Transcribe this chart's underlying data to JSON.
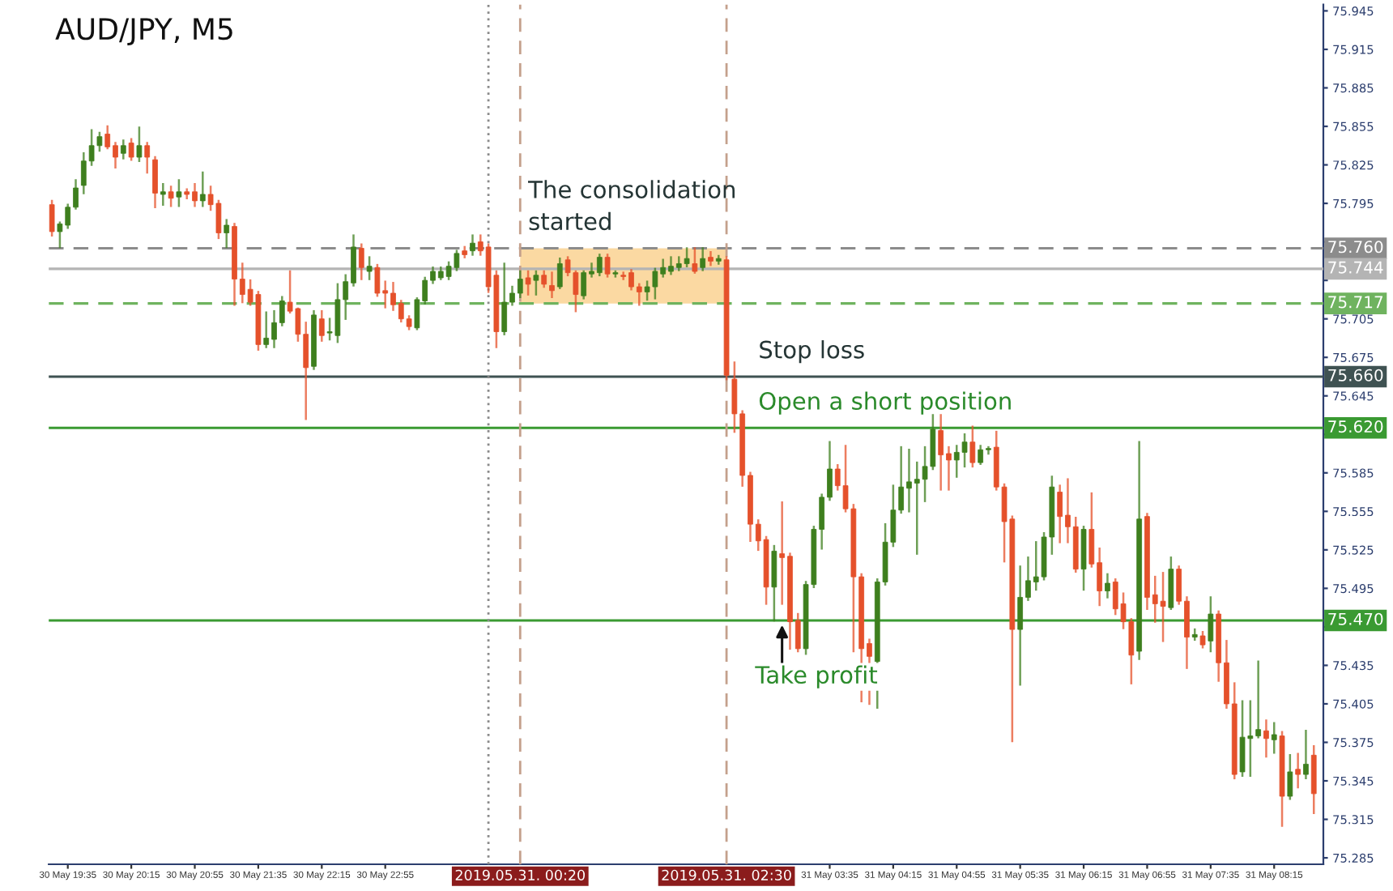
{
  "chart_data": {
    "type": "candlestick",
    "title": "AUD/JPY, M5",
    "x": [
      "2019-05-30T19:25",
      "2019-05-30T19:30",
      "2019-05-30T19:35",
      "2019-05-30T19:40",
      "2019-05-30T19:45",
      "2019-05-30T19:50",
      "2019-05-30T19:55",
      "2019-05-30T20:00",
      "2019-05-30T20:05",
      "2019-05-30T20:10",
      "2019-05-30T20:15",
      "2019-05-30T20:20",
      "2019-05-30T20:25",
      "2019-05-30T20:30",
      "2019-05-30T20:35",
      "2019-05-30T20:40",
      "2019-05-30T20:45",
      "2019-05-30T20:50",
      "2019-05-30T20:55",
      "2019-05-30T21:00",
      "2019-05-30T21:05",
      "2019-05-30T21:10",
      "2019-05-30T21:15",
      "2019-05-30T21:20",
      "2019-05-30T21:25",
      "2019-05-30T21:30",
      "2019-05-30T21:35",
      "2019-05-30T21:40",
      "2019-05-30T21:45",
      "2019-05-30T21:50",
      "2019-05-30T21:55",
      "2019-05-30T22:00",
      "2019-05-30T22:05",
      "2019-05-30T22:10",
      "2019-05-30T22:15",
      "2019-05-30T22:20",
      "2019-05-30T22:25",
      "2019-05-30T22:30",
      "2019-05-30T22:35",
      "2019-05-30T22:40",
      "2019-05-30T22:45",
      "2019-05-30T22:50",
      "2019-05-30T22:55",
      "2019-05-30T23:00",
      "2019-05-30T23:05",
      "2019-05-30T23:10",
      "2019-05-30T23:15",
      "2019-05-30T23:20",
      "2019-05-30T23:25",
      "2019-05-30T23:30",
      "2019-05-30T23:35",
      "2019-05-30T23:40",
      "2019-05-30T23:45",
      "2019-05-30T23:50",
      "2019-05-30T23:55",
      "2019-05-31T00:00",
      "2019-05-31T00:05",
      "2019-05-31T00:10",
      "2019-05-31T00:15",
      "2019-05-31T00:20",
      "2019-05-31T00:25",
      "2019-05-31T00:30",
      "2019-05-31T00:35",
      "2019-05-31T00:40",
      "2019-05-31T00:45",
      "2019-05-31T00:50",
      "2019-05-31T00:55",
      "2019-05-31T01:00",
      "2019-05-31T01:05",
      "2019-05-31T01:10",
      "2019-05-31T01:15",
      "2019-05-31T01:20",
      "2019-05-31T01:25",
      "2019-05-31T01:30",
      "2019-05-31T01:35",
      "2019-05-31T01:40",
      "2019-05-31T01:45",
      "2019-05-31T01:50",
      "2019-05-31T01:55",
      "2019-05-31T02:00",
      "2019-05-31T02:05",
      "2019-05-31T02:10",
      "2019-05-31T02:15",
      "2019-05-31T02:20",
      "2019-05-31T02:25",
      "2019-05-31T02:30",
      "2019-05-31T02:35",
      "2019-05-31T02:40",
      "2019-05-31T02:45",
      "2019-05-31T02:50",
      "2019-05-31T02:55",
      "2019-05-31T03:00",
      "2019-05-31T03:05",
      "2019-05-31T03:10",
      "2019-05-31T03:15",
      "2019-05-31T03:20",
      "2019-05-31T03:25",
      "2019-05-31T03:30",
      "2019-05-31T03:35",
      "2019-05-31T03:40",
      "2019-05-31T03:45",
      "2019-05-31T03:50",
      "2019-05-31T03:55",
      "2019-05-31T04:00",
      "2019-05-31T04:05",
      "2019-05-31T04:10",
      "2019-05-31T04:15",
      "2019-05-31T04:20",
      "2019-05-31T04:25",
      "2019-05-31T04:30",
      "2019-05-31T04:35",
      "2019-05-31T04:40",
      "2019-05-31T04:45",
      "2019-05-31T04:50",
      "2019-05-31T04:55",
      "2019-05-31T05:00",
      "2019-05-31T05:05",
      "2019-05-31T05:10",
      "2019-05-31T05:15",
      "2019-05-31T05:20",
      "2019-05-31T05:25",
      "2019-05-31T05:30",
      "2019-05-31T05:35",
      "2019-05-31T05:40",
      "2019-05-31T05:45",
      "2019-05-31T05:50",
      "2019-05-31T05:55",
      "2019-05-31T06:00",
      "2019-05-31T06:05",
      "2019-05-31T06:10",
      "2019-05-31T06:15",
      "2019-05-31T06:20",
      "2019-05-31T06:25",
      "2019-05-31T06:30",
      "2019-05-31T06:35",
      "2019-05-31T06:40",
      "2019-05-31T06:45",
      "2019-05-31T06:50",
      "2019-05-31T06:55",
      "2019-05-31T07:00",
      "2019-05-31T07:05",
      "2019-05-31T07:10",
      "2019-05-31T07:15",
      "2019-05-31T07:20",
      "2019-05-31T07:25",
      "2019-05-31T07:30",
      "2019-05-31T07:35",
      "2019-05-31T07:40",
      "2019-05-31T07:45",
      "2019-05-31T07:50",
      "2019-05-31T07:55",
      "2019-05-31T08:00",
      "2019-05-31T08:05",
      "2019-05-31T08:10",
      "2019-05-31T08:15",
      "2019-05-31T08:20",
      "2019-05-31T08:25",
      "2019-05-31T08:30",
      "2019-05-31T08:35",
      "2019-05-31T08:40"
    ],
    "ohlc": [
      [
        75.794,
        75.797,
        75.77,
        75.773
      ],
      [
        75.773,
        75.78,
        75.761,
        75.779
      ],
      [
        75.778,
        75.794,
        75.776,
        75.792
      ],
      [
        75.792,
        75.813,
        75.791,
        75.807
      ],
      [
        75.809,
        75.834,
        75.803,
        75.828
      ],
      [
        75.828,
        75.852,
        75.825,
        75.84
      ],
      [
        75.84,
        75.85,
        75.836,
        75.847
      ],
      [
        75.849,
        75.855,
        75.838,
        75.839
      ],
      [
        75.84,
        75.842,
        75.823,
        75.831
      ],
      [
        75.834,
        75.844,
        75.83,
        75.84
      ],
      [
        75.842,
        75.845,
        75.829,
        75.831
      ],
      [
        75.831,
        75.854,
        75.828,
        75.84
      ],
      [
        75.84,
        75.842,
        75.819,
        75.831
      ],
      [
        75.829,
        75.831,
        75.792,
        75.803
      ],
      [
        75.802,
        75.81,
        75.794,
        75.804
      ],
      [
        75.804,
        75.808,
        75.793,
        75.799
      ],
      [
        75.8,
        75.813,
        75.793,
        75.804
      ],
      [
        75.804,
        75.806,
        75.799,
        75.802
      ],
      [
        75.804,
        75.81,
        75.793,
        75.797
      ],
      [
        75.797,
        75.819,
        75.793,
        75.802
      ],
      [
        75.802,
        75.808,
        75.79,
        75.794
      ],
      [
        75.795,
        75.797,
        75.768,
        75.772
      ],
      [
        75.772,
        75.782,
        75.761,
        75.778
      ],
      [
        75.777,
        75.779,
        75.716,
        75.736
      ],
      [
        75.736,
        75.748,
        75.718,
        75.724
      ],
      [
        75.728,
        75.735,
        75.716,
        75.718
      ],
      [
        75.724,
        75.726,
        75.681,
        75.685
      ],
      [
        75.685,
        75.71,
        75.683,
        75.69
      ],
      [
        75.689,
        75.711,
        75.683,
        75.702
      ],
      [
        75.702,
        75.722,
        75.7,
        75.719
      ],
      [
        75.718,
        75.742,
        75.71,
        75.711
      ],
      [
        75.713,
        75.713,
        75.688,
        75.693
      ],
      [
        75.693,
        75.702,
        75.627,
        75.667
      ],
      [
        75.668,
        75.711,
        75.666,
        75.708
      ],
      [
        75.705,
        75.711,
        75.688,
        75.692
      ],
      [
        75.694,
        75.705,
        75.689,
        75.695
      ],
      [
        75.692,
        75.732,
        75.687,
        75.72
      ],
      [
        75.72,
        75.739,
        75.705,
        75.734
      ],
      [
        75.733,
        75.77,
        75.731,
        75.761
      ],
      [
        75.76,
        75.763,
        75.736,
        75.745
      ],
      [
        75.742,
        75.753,
        75.736,
        75.746
      ],
      [
        75.745,
        75.747,
        75.723,
        75.725
      ],
      [
        75.727,
        75.734,
        75.714,
        75.725
      ],
      [
        75.725,
        75.733,
        75.712,
        75.716
      ],
      [
        75.717,
        75.719,
        75.703,
        75.705
      ],
      [
        75.705,
        75.707,
        75.697,
        75.699
      ],
      [
        75.698,
        75.721,
        75.697,
        75.72
      ],
      [
        75.719,
        75.737,
        75.717,
        75.735
      ],
      [
        75.735,
        75.745,
        75.733,
        75.742
      ],
      [
        75.737,
        75.745,
        75.736,
        75.742
      ],
      [
        75.738,
        75.749,
        75.736,
        75.746
      ],
      [
        75.745,
        75.758,
        75.743,
        75.756
      ],
      [
        75.758,
        75.761,
        75.753,
        75.755
      ],
      [
        75.758,
        75.77,
        75.755,
        75.764
      ],
      [
        75.765,
        75.77,
        75.755,
        75.758
      ],
      [
        75.761,
        75.763,
        75.726,
        75.73
      ],
      [
        75.739,
        75.742,
        75.683,
        75.695
      ],
      [
        75.695,
        75.748,
        75.693,
        75.718
      ],
      [
        75.718,
        75.73,
        75.716,
        75.725
      ],
      [
        75.725,
        75.742,
        75.722,
        75.736
      ],
      [
        75.737,
        75.742,
        75.724,
        75.732
      ],
      [
        75.735,
        75.742,
        75.724,
        75.739
      ],
      [
        75.739,
        75.742,
        75.73,
        75.732
      ],
      [
        75.731,
        75.741,
        75.722,
        75.727
      ],
      [
        75.73,
        75.752,
        75.729,
        75.748
      ],
      [
        75.751,
        75.753,
        75.739,
        75.741
      ],
      [
        75.741,
        75.742,
        75.711,
        75.724
      ],
      [
        75.723,
        75.742,
        75.721,
        75.741
      ],
      [
        75.74,
        75.748,
        75.738,
        75.742
      ],
      [
        75.741,
        75.755,
        75.739,
        75.753
      ],
      [
        75.753,
        75.755,
        75.738,
        75.74
      ],
      [
        75.74,
        75.742,
        75.738,
        75.741
      ],
      [
        75.739,
        75.741,
        75.736,
        75.738
      ],
      [
        75.741,
        75.743,
        75.728,
        75.73
      ],
      [
        75.73,
        75.732,
        75.716,
        75.726
      ],
      [
        75.726,
        75.734,
        75.72,
        75.73
      ],
      [
        75.73,
        75.744,
        75.721,
        75.742
      ],
      [
        75.74,
        75.751,
        75.738,
        75.745
      ],
      [
        75.742,
        75.753,
        75.74,
        75.746
      ],
      [
        75.745,
        75.753,
        75.743,
        75.748
      ],
      [
        75.748,
        75.76,
        75.746,
        75.752
      ],
      [
        75.748,
        75.76,
        75.741,
        75.742
      ],
      [
        75.745,
        75.76,
        75.743,
        75.752
      ],
      [
        75.753,
        75.757,
        75.747,
        75.75
      ],
      [
        75.75,
        75.754,
        75.748,
        75.752
      ],
      [
        75.751,
        75.753,
        75.658,
        75.661
      ],
      [
        75.658,
        75.671,
        75.617,
        75.631
      ],
      [
        75.631,
        75.633,
        75.575,
        75.583
      ],
      [
        75.583,
        75.585,
        75.532,
        75.545
      ],
      [
        75.545,
        75.548,
        75.525,
        75.532
      ],
      [
        75.533,
        75.535,
        75.483,
        75.496
      ],
      [
        75.496,
        75.528,
        75.47,
        75.524
      ],
      [
        75.522,
        75.562,
        75.483,
        75.519
      ],
      [
        75.52,
        75.522,
        75.448,
        75.469
      ],
      [
        75.47,
        75.475,
        75.446,
        75.448
      ],
      [
        75.448,
        75.5,
        75.444,
        75.498
      ],
      [
        75.498,
        75.543,
        75.496,
        75.541
      ],
      [
        75.541,
        75.568,
        75.526,
        75.566
      ],
      [
        75.566,
        75.609,
        75.564,
        75.588
      ],
      [
        75.588,
        75.591,
        75.572,
        75.575
      ],
      [
        75.575,
        75.606,
        75.555,
        75.557
      ],
      [
        75.557,
        75.56,
        75.446,
        75.504
      ],
      [
        75.504,
        75.506,
        75.407,
        75.448
      ],
      [
        75.452,
        75.455,
        75.405,
        75.442
      ],
      [
        75.438,
        75.502,
        75.402,
        75.5
      ],
      [
        75.5,
        75.545,
        75.498,
        75.531
      ],
      [
        75.531,
        75.575,
        75.528,
        75.556
      ],
      [
        75.556,
        75.605,
        75.554,
        75.574
      ],
      [
        75.573,
        75.603,
        75.555,
        75.578
      ],
      [
        75.577,
        75.593,
        75.522,
        75.58
      ],
      [
        75.58,
        75.605,
        75.563,
        75.59
      ],
      [
        75.59,
        75.63,
        75.588,
        75.619
      ],
      [
        75.618,
        75.63,
        75.572,
        75.599
      ],
      [
        75.6,
        75.605,
        75.572,
        75.595
      ],
      [
        75.595,
        75.606,
        75.582,
        75.601
      ],
      [
        75.601,
        75.615,
        75.59,
        75.609
      ],
      [
        75.609,
        75.621,
        75.59,
        75.593
      ],
      [
        75.593,
        75.606,
        75.592,
        75.603
      ],
      [
        75.603,
        75.605,
        75.6,
        75.604
      ],
      [
        75.605,
        75.617,
        75.572,
        75.574
      ],
      [
        75.574,
        75.576,
        75.516,
        75.547
      ],
      [
        75.549,
        75.551,
        75.376,
        75.463
      ],
      [
        75.463,
        75.512,
        75.42,
        75.488
      ],
      [
        75.488,
        75.519,
        75.486,
        75.501
      ],
      [
        75.5,
        75.531,
        75.494,
        75.504
      ],
      [
        75.504,
        75.538,
        75.502,
        75.535
      ],
      [
        75.535,
        75.582,
        75.522,
        75.574
      ],
      [
        75.57,
        75.575,
        75.531,
        75.551
      ],
      [
        75.552,
        75.58,
        75.531,
        75.543
      ],
      [
        75.543,
        75.55,
        75.508,
        75.51
      ],
      [
        75.51,
        75.543,
        75.494,
        75.541
      ],
      [
        75.541,
        75.569,
        75.512,
        75.514
      ],
      [
        75.515,
        75.526,
        75.482,
        75.493
      ],
      [
        75.493,
        75.506,
        75.488,
        75.499
      ],
      [
        75.5,
        75.502,
        75.475,
        75.479
      ],
      [
        75.483,
        75.491,
        75.464,
        75.469
      ],
      [
        75.469,
        75.471,
        75.421,
        75.443
      ],
      [
        75.446,
        75.609,
        75.44,
        75.549
      ],
      [
        75.551,
        75.553,
        75.479,
        75.488
      ],
      [
        75.49,
        75.504,
        75.469,
        75.483
      ],
      [
        75.485,
        75.507,
        75.454,
        75.481
      ],
      [
        75.48,
        75.519,
        75.479,
        75.51
      ],
      [
        75.51,
        75.512,
        75.483,
        75.485
      ],
      [
        75.485,
        75.488,
        75.433,
        75.457
      ],
      [
        75.457,
        75.463,
        75.455,
        75.459
      ],
      [
        75.458,
        75.461,
        75.449,
        75.451
      ],
      [
        75.454,
        75.488,
        75.446,
        75.475
      ],
      [
        75.475,
        75.477,
        75.423,
        75.437
      ],
      [
        75.437,
        75.454,
        75.402,
        75.405
      ],
      [
        75.405,
        75.421,
        75.347,
        75.35
      ],
      [
        75.352,
        75.407,
        75.349,
        75.379
      ],
      [
        75.378,
        75.407,
        75.349,
        75.38
      ],
      [
        75.38,
        75.438,
        75.379,
        75.385
      ],
      [
        75.384,
        75.392,
        75.364,
        75.378
      ],
      [
        75.377,
        75.39,
        75.367,
        75.381
      ],
      [
        75.38,
        75.383,
        75.31,
        75.333
      ],
      [
        75.333,
        75.365,
        75.331,
        75.352
      ],
      [
        75.354,
        75.366,
        75.34,
        75.35
      ],
      [
        75.35,
        75.384,
        75.347,
        75.358
      ],
      [
        75.365,
        75.372,
        75.32,
        75.335
      ]
    ],
    "colors": [
      "#e5512b",
      "#3e7f1e",
      "#3e7f1e",
      "#3e7f1e",
      "#3e7f1e",
      "#3e7f1e",
      "#3e7f1e",
      "#e5512b",
      "#e5512b",
      "#3e7f1e",
      "#e5512b",
      "#3e7f1e",
      "#e5512b",
      "#e5512b",
      "#3e7f1e",
      "#e5512b",
      "#3e7f1e",
      "#e5512b",
      "#e5512b",
      "#3e7f1e",
      "#e5512b",
      "#e5512b",
      "#3e7f1e",
      "#e5512b",
      "#e5512b",
      "#e5512b",
      "#e5512b",
      "#3e7f1e",
      "#3e7f1e",
      "#3e7f1e",
      "#e5512b",
      "#e5512b",
      "#e5512b",
      "#3e7f1e",
      "#e5512b",
      "#3e7f1e",
      "#3e7f1e",
      "#3e7f1e",
      "#3e7f1e",
      "#e5512b",
      "#3e7f1e",
      "#e5512b",
      "#e5512b",
      "#e5512b",
      "#e5512b",
      "#e5512b",
      "#3e7f1e",
      "#3e7f1e",
      "#3e7f1e",
      "#3e7f1e",
      "#3e7f1e",
      "#3e7f1e",
      "#e5512b",
      "#3e7f1e",
      "#e5512b",
      "#e5512b",
      "#e5512b",
      "#3e7f1e",
      "#3e7f1e",
      "#3e7f1e",
      "#e5512b",
      "#3e7f1e",
      "#e5512b",
      "#e5512b",
      "#3e7f1e",
      "#e5512b",
      "#e5512b",
      "#3e7f1e",
      "#3e7f1e",
      "#3e7f1e",
      "#e5512b",
      "#3e7f1e",
      "#e5512b",
      "#e5512b",
      "#e5512b",
      "#3e7f1e",
      "#3e7f1e",
      "#3e7f1e",
      "#3e7f1e",
      "#3e7f1e",
      "#3e7f1e",
      "#e5512b",
      "#3e7f1e",
      "#e5512b",
      "#3e7f1e",
      "#e5512b",
      "#e5512b",
      "#e5512b",
      "#e5512b",
      "#e5512b",
      "#e5512b",
      "#3e7f1e",
      "#e5512b",
      "#e5512b",
      "#e5512b",
      "#3e7f1e",
      "#3e7f1e",
      "#3e7f1e",
      "#3e7f1e",
      "#e5512b",
      "#e5512b",
      "#e5512b",
      "#e5512b",
      "#e5512b",
      "#3e7f1e",
      "#3e7f1e",
      "#3e7f1e",
      "#3e7f1e",
      "#3e7f1e",
      "#3e7f1e",
      "#3e7f1e",
      "#3e7f1e",
      "#e5512b",
      "#e5512b",
      "#3e7f1e",
      "#3e7f1e",
      "#e5512b",
      "#3e7f1e",
      "#3e7f1e",
      "#e5512b",
      "#e5512b",
      "#e5512b",
      "#3e7f1e",
      "#3e7f1e",
      "#3e7f1e",
      "#3e7f1e",
      "#3e7f1e",
      "#e5512b",
      "#e5512b",
      "#e5512b",
      "#3e7f1e",
      "#e5512b",
      "#e5512b",
      "#3e7f1e",
      "#e5512b",
      "#e5512b",
      "#e5512b",
      "#3e7f1e",
      "#e5512b",
      "#e5512b",
      "#e5512b",
      "#3e7f1e",
      "#e5512b",
      "#e5512b",
      "#3e7f1e",
      "#e5512b",
      "#3e7f1e",
      "#e5512b",
      "#e5512b",
      "#e5512b",
      "#3e7f1e",
      "#3e7f1e",
      "#3e7f1e",
      "#e5512b",
      "#3e7f1e",
      "#e5512b",
      "#3e7f1e",
      "#e5512b",
      "#3e7f1e",
      "#e5512b"
    ],
    "xlim": [
      "2019-05-30T19:23",
      "2019-05-31T08:46"
    ],
    "xticks": [
      {
        "value": "2019-05-30T19:35",
        "label": "30 May 19:35"
      },
      {
        "value": "2019-05-30T20:15",
        "label": "30 May 20:15"
      },
      {
        "value": "2019-05-30T20:55",
        "label": "30 May 20:55"
      },
      {
        "value": "2019-05-30T21:35",
        "label": "30 May 21:35"
      },
      {
        "value": "2019-05-30T22:15",
        "label": "30 May 22:15"
      },
      {
        "value": "2019-05-30T22:55",
        "label": "30 May 22:55"
      },
      {
        "value": "2019-05-31T03:35",
        "label": "31 May 03:35"
      },
      {
        "value": "2019-05-31T04:15",
        "label": "31 May 04:15"
      },
      {
        "value": "2019-05-31T04:55",
        "label": "31 May 04:55"
      },
      {
        "value": "2019-05-31T05:35",
        "label": "31 May 05:35"
      },
      {
        "value": "2019-05-31T06:15",
        "label": "31 May 06:15"
      },
      {
        "value": "2019-05-31T06:55",
        "label": "31 May 06:55"
      },
      {
        "value": "2019-05-31T07:35",
        "label": "31 May 07:35"
      },
      {
        "value": "2019-05-31T08:15",
        "label": "31 May 08:15"
      }
    ],
    "ylim": [
      75.28,
      75.95
    ],
    "yticks": [
      75.285,
      75.315,
      75.345,
      75.375,
      75.405,
      75.435,
      {
        "value": 75.465,
        "label": null
      },
      75.495,
      75.525,
      75.555,
      75.585,
      {
        "value": 75.615,
        "label": null
      },
      75.645,
      75.675,
      75.705,
      {
        "value": 75.735,
        "label": null
      },
      {
        "value": 75.765,
        "label": null
      },
      75.795,
      75.825,
      75.855,
      75.885,
      75.915,
      75.945
    ],
    "ref_lines": [
      {
        "axis": "y",
        "value": 75.76,
        "label": "75.760",
        "color": "#8c8c8c",
        "line_style": "dashed"
      },
      {
        "axis": "y",
        "value": 75.744,
        "label": "75.744",
        "color": "#b4b4b4",
        "line_style": "solid"
      },
      {
        "axis": "y",
        "value": 75.717,
        "label": "75.717",
        "color": "#6fb35f",
        "line_style": "dashed"
      },
      {
        "axis": "y",
        "value": 75.66,
        "label": "75.660",
        "color": "#3f5252",
        "line_style": "solid"
      },
      {
        "axis": "y",
        "value": 75.62,
        "label": "75.620",
        "color": "#3a9a32",
        "line_style": "solid"
      },
      {
        "axis": "y",
        "value": 75.47,
        "label": "75.470",
        "color": "#3a9a32",
        "line_style": "solid"
      },
      {
        "axis": "x",
        "value": "2019-05-31T00:00",
        "color": "#8a8a8a",
        "line_style": "dotted"
      },
      {
        "axis": "x",
        "value": "2019-05-31T00:20",
        "label": "2019.05.31. 00:20",
        "color": "#c4a08c",
        "line_style": "dashed"
      },
      {
        "axis": "x",
        "value": "2019-05-31T02:30",
        "label": "2019.05.31. 02:30",
        "color": "#c4a08c",
        "line_style": "dashed"
      }
    ],
    "bands": [
      {
        "axis": "x",
        "from": "2019-05-31T00:20",
        "to": "2019-05-31T02:30",
        "color": "#fbd9a2"
      }
    ],
    "annotations": [
      {
        "text": "The consolidation\nstarted",
        "x": "2019-05-31T00:25",
        "y": 75.76
      },
      {
        "text": "Stop loss",
        "x": "2019-05-31T02:50",
        "y": 75.66
      },
      {
        "text": "Open a short position",
        "x": "2019-05-31T02:50",
        "y": 75.62
      },
      {
        "text": "Take profit",
        "x": "2019-05-31T03:05",
        "y": 75.47
      }
    ],
    "grid": false,
    "legend": false
  }
}
